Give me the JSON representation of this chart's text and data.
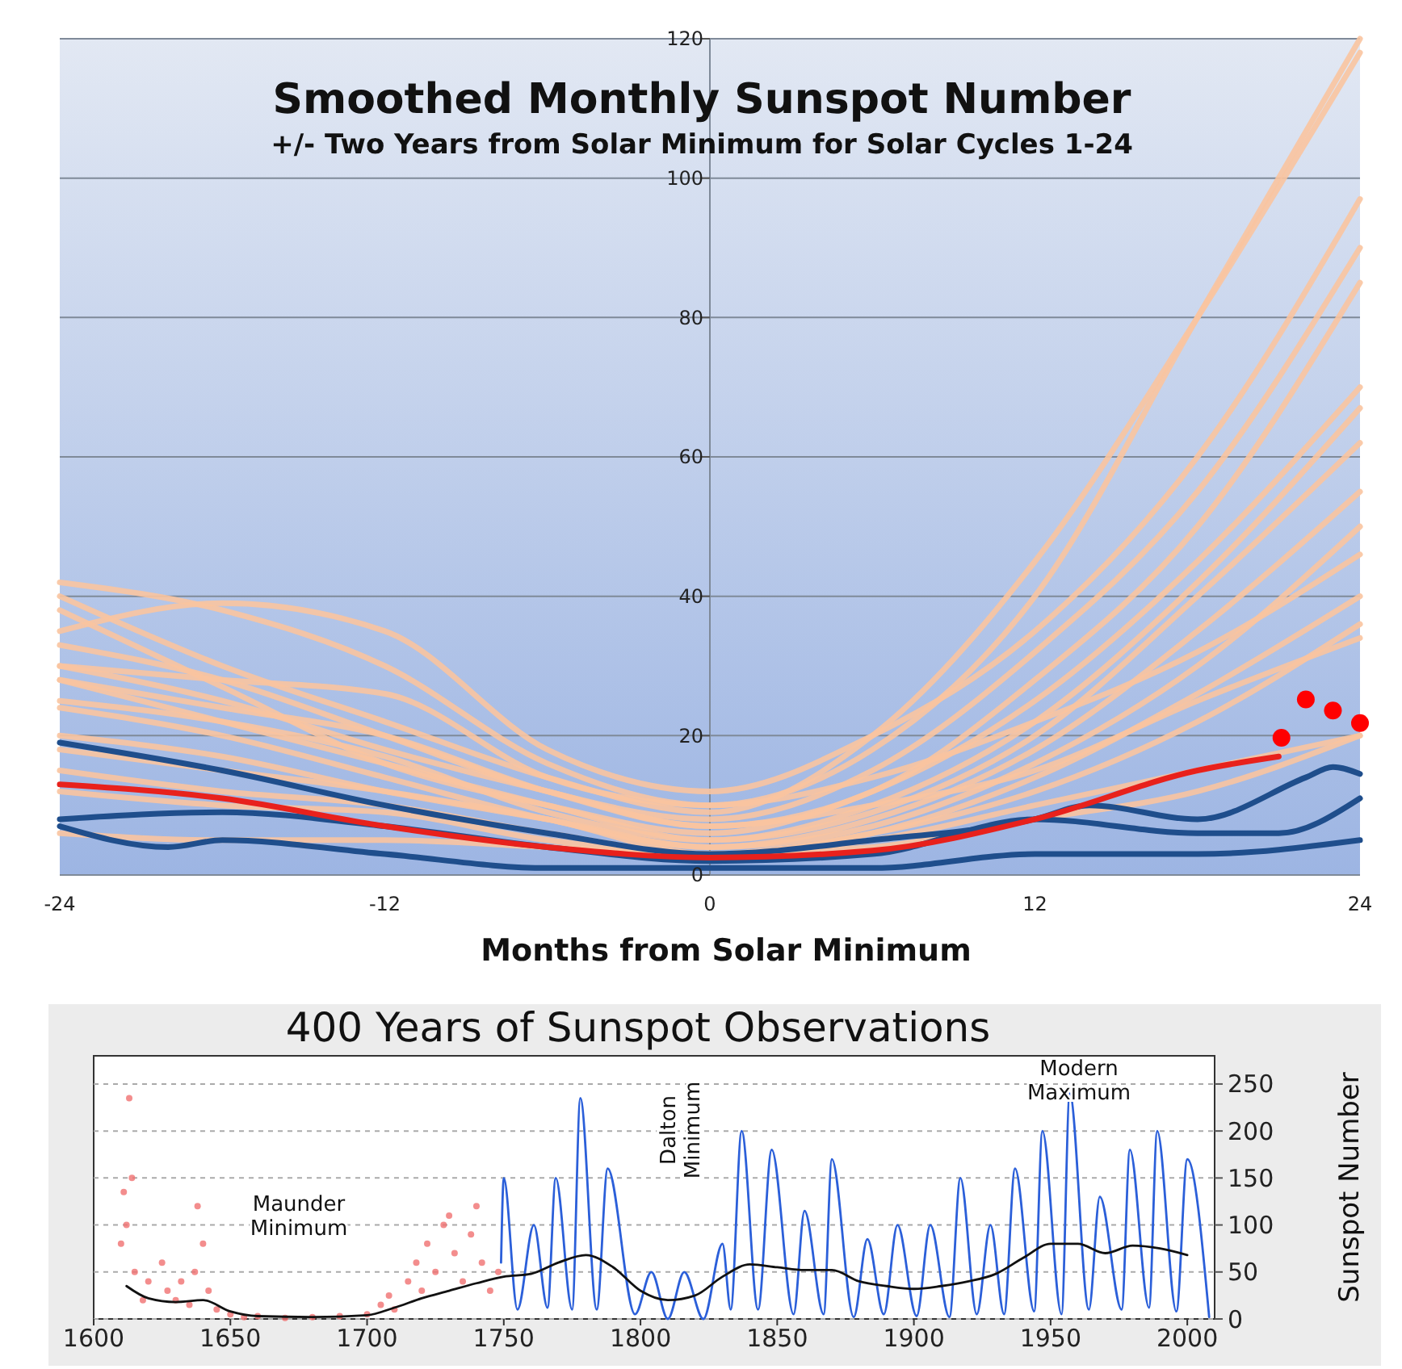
{
  "chart_data": [
    {
      "type": "line",
      "title": "Smoothed Monthly Sunspot Number",
      "subtitle": "+/- Two Years from Solar Minimum for Solar Cycles 1-24",
      "xlabel": "Months from Solar Minimum",
      "x": [
        -24,
        -18,
        -12,
        -6,
        0,
        6,
        12,
        18,
        24
      ],
      "xlim": [
        -24,
        24
      ],
      "xticks": [
        -24,
        -12,
        0,
        12,
        24
      ],
      "ylim": [
        0,
        120
      ],
      "yticks": [
        0,
        20,
        40,
        60,
        80,
        100,
        120
      ],
      "grid": "y",
      "line_style": "solid",
      "marker": "none",
      "series": [
        {
          "color": "#f9c4a0",
          "values": [
            42,
            38,
            30,
            16,
            10,
            18,
            40,
            80,
            120
          ]
        },
        {
          "color": "#f9c4a0",
          "values": [
            40,
            30,
            22,
            14,
            9,
            20,
            45,
            80,
            118
          ]
        },
        {
          "color": "#f9c4a0",
          "values": [
            35,
            39,
            35,
            18,
            12,
            20,
            35,
            60,
            97
          ]
        },
        {
          "color": "#f9c4a0",
          "values": [
            33,
            28,
            20,
            12,
            8,
            15,
            32,
            55,
            90
          ]
        },
        {
          "color": "#f9c4a0",
          "values": [
            30,
            25,
            18,
            12,
            7,
            12,
            28,
            50,
            85
          ]
        },
        {
          "color": "#f9c4a0",
          "values": [
            38,
            27,
            16,
            10,
            6,
            12,
            25,
            45,
            70
          ]
        },
        {
          "color": "#f9c4a0",
          "values": [
            28,
            22,
            16,
            10,
            5,
            10,
            22,
            42,
            67
          ]
        },
        {
          "color": "#f9c4a0",
          "values": [
            25,
            22,
            17,
            9,
            5,
            9,
            20,
            40,
            62
          ]
        },
        {
          "color": "#f9c4a0",
          "values": [
            24,
            20,
            14,
            8,
            4,
            8,
            18,
            35,
            55
          ]
        },
        {
          "color": "#f9c4a0",
          "values": [
            20,
            17,
            12,
            8,
            4,
            7,
            16,
            30,
            50
          ]
        },
        {
          "color": "#f9c4a0",
          "values": [
            30,
            28,
            26,
            14,
            10,
            14,
            22,
            32,
            46
          ]
        },
        {
          "color": "#f9c4a0",
          "values": [
            18,
            15,
            12,
            8,
            3,
            6,
            14,
            26,
            40
          ]
        },
        {
          "color": "#f9c4a0",
          "values": [
            15,
            12,
            10,
            6,
            3,
            6,
            12,
            22,
            36
          ]
        },
        {
          "color": "#f9c4a0",
          "values": [
            28,
            24,
            20,
            12,
            7,
            10,
            15,
            25,
            34
          ]
        },
        {
          "color": "#f9c4a0",
          "values": [
            12,
            10,
            9,
            5,
            3,
            5,
            10,
            15,
            20
          ]
        },
        {
          "color": "#f9c4a0",
          "values": [
            6,
            5,
            5,
            4,
            3,
            4,
            8,
            12,
            20
          ]
        },
        {
          "color": "#1f4e8c",
          "x": [
            -24,
            -18,
            -12,
            -6,
            0,
            6,
            12,
            14,
            18,
            22,
            23,
            24
          ],
          "values": [
            19,
            15,
            10,
            6,
            3,
            5,
            8,
            10,
            8,
            14,
            15.5,
            14.5
          ]
        },
        {
          "color": "#1f4e8c",
          "x": [
            -24,
            -18,
            -12,
            -6,
            0,
            6,
            12,
            18,
            21,
            24
          ],
          "values": [
            8,
            9,
            7,
            4,
            2,
            3,
            8,
            6,
            6,
            11
          ]
        },
        {
          "color": "#1f4e8c",
          "x": [
            -24,
            -20,
            -18,
            -12,
            -6,
            0,
            6,
            12,
            18,
            24
          ],
          "values": [
            7,
            4,
            5,
            3,
            1,
            1,
            1,
            3,
            3,
            5
          ]
        },
        {
          "color": "#e8211c",
          "x": [
            -24,
            -18,
            -12,
            -6,
            0,
            6,
            12,
            18,
            21
          ],
          "values": [
            13,
            11,
            7,
            4,
            2.5,
            3.5,
            8,
            15,
            17
          ]
        },
        {
          "type": "scatter",
          "marker": "circle",
          "color": "#ff0000",
          "x": [
            21.1,
            22,
            23,
            24
          ],
          "values": [
            19.7,
            25.2,
            23.6,
            21.8
          ]
        }
      ]
    },
    {
      "type": "line",
      "title": "400 Years of Sunspot Observations",
      "ylabel": "Sunspot Number",
      "xlim": [
        1600,
        2010
      ],
      "xticks": [
        1600,
        1650,
        1700,
        1750,
        1800,
        1850,
        1900,
        1950,
        2000
      ],
      "ylim": [
        0,
        280
      ],
      "yticks": [
        0,
        50,
        100,
        150,
        200,
        250
      ],
      "grid": "y",
      "marker": "none",
      "annotations": [
        "Maunder Minimum",
        "Dalton Minimum",
        "Modern Maximum"
      ],
      "series": [
        {
          "type": "scatter",
          "marker": "circle",
          "color": "#f07070",
          "x": [
            1610,
            1611,
            1612,
            1613,
            1614,
            1615,
            1618,
            1620,
            1625,
            1627,
            1630,
            1632,
            1635,
            1637,
            1638,
            1640,
            1642,
            1645,
            1650,
            1655,
            1660,
            1670,
            1680,
            1690,
            1700,
            1705,
            1708,
            1710,
            1715,
            1718,
            1720,
            1722,
            1725,
            1728,
            1730,
            1732,
            1735,
            1738,
            1740,
            1742,
            1745,
            1748
          ],
          "values": [
            80,
            135,
            100,
            235,
            150,
            50,
            20,
            40,
            60,
            30,
            20,
            40,
            15,
            50,
            120,
            80,
            30,
            10,
            5,
            2,
            3,
            1,
            2,
            3,
            5,
            15,
            25,
            10,
            40,
            60,
            30,
            80,
            50,
            100,
            110,
            70,
            40,
            90,
            120,
            60,
            30,
            50
          ]
        },
        {
          "color": "#2b5fd9",
          "x": [
            1749,
            1750,
            1755,
            1761,
            1766,
            1769,
            1775,
            1778,
            1784,
            1788,
            1798,
            1804,
            1810,
            1816,
            1823,
            1830,
            1833,
            1837,
            1843,
            1848,
            1856,
            1860,
            1867,
            1870,
            1878,
            1883,
            1889,
            1894,
            1901,
            1906,
            1913,
            1917,
            1923,
            1928,
            1933,
            1937,
            1944,
            1947,
            1954,
            1957,
            1964,
            1968,
            1976,
            1979,
            1986,
            1989,
            1996,
            2000,
            2008
          ],
          "values": [
            60,
            150,
            10,
            100,
            12,
            150,
            10,
            235,
            10,
            160,
            5,
            50,
            0,
            50,
            0,
            80,
            10,
            200,
            10,
            180,
            5,
            115,
            5,
            170,
            2,
            85,
            5,
            100,
            3,
            100,
            2,
            150,
            5,
            100,
            5,
            160,
            8,
            200,
            5,
            240,
            10,
            130,
            10,
            180,
            12,
            200,
            8,
            170,
            2
          ]
        },
        {
          "color": "#111111",
          "x": [
            1612,
            1620,
            1630,
            1640,
            1650,
            1660,
            1680,
            1700,
            1710,
            1720,
            1730,
            1740,
            1750,
            1760,
            1770,
            1780,
            1790,
            1800,
            1810,
            1820,
            1830,
            1840,
            1850,
            1860,
            1870,
            1880,
            1890,
            1900,
            1910,
            1920,
            1930,
            1940,
            1950,
            1960,
            1970,
            1980,
            1990,
            2000
          ],
          "values": [
            35,
            22,
            18,
            20,
            8,
            3,
            2,
            4,
            12,
            22,
            30,
            38,
            45,
            48,
            60,
            68,
            55,
            30,
            20,
            25,
            45,
            58,
            55,
            52,
            52,
            40,
            35,
            32,
            35,
            40,
            48,
            65,
            80,
            80,
            70,
            78,
            75,
            68
          ]
        }
      ]
    }
  ]
}
